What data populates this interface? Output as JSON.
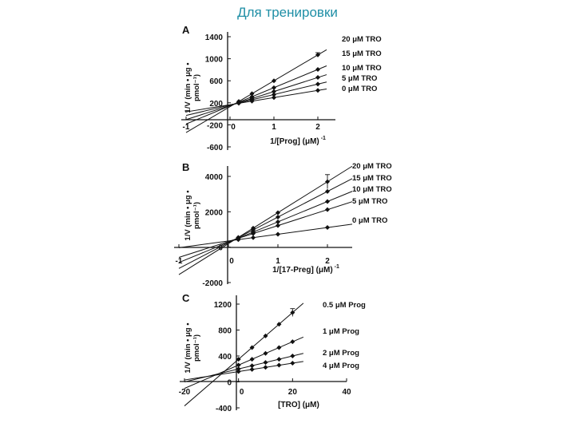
{
  "slide_title": "Для тренировки",
  "chart_data": [
    {
      "type": "line",
      "panel": "A",
      "plot_kind": "double-reciprocal (Lineweaver-Burk)",
      "xlabel": "1/[Prog] (μM)",
      "xlabel_sup": "-1",
      "ylabel": "1/V (min • μg • pmol⁻¹)",
      "xlim": [
        -1,
        2.4
      ],
      "ylim": [
        -600,
        1400
      ],
      "x_ticks": [
        {
          "v": -1,
          "t": "-1"
        },
        {
          "v": 0,
          "t": "0"
        },
        {
          "v": 1,
          "t": "1"
        },
        {
          "v": 2,
          "t": "2"
        }
      ],
      "y_ticks": [
        {
          "v": 1400,
          "t": "1400"
        },
        {
          "v": 1000,
          "t": "1000"
        },
        {
          "v": 600,
          "t": "600"
        },
        {
          "v": 200,
          "t": "200"
        },
        {
          "v": -200,
          "t": "-200"
        },
        {
          "v": -600,
          "t": "-600"
        }
      ],
      "line_x_range": [
        -1,
        2.2
      ],
      "series": [
        {
          "name": "20 μM TRO",
          "slope": 470,
          "intercept": 130,
          "x": [
            0.2,
            0.5,
            1,
            2
          ],
          "values": [
            224,
            365,
            600,
            1070
          ],
          "error_at_last": 40
        },
        {
          "name": "15 μM TRO",
          "slope": 330,
          "intercept": 145,
          "x": [
            0.2,
            0.5,
            1,
            2
          ],
          "values": [
            211,
            310,
            475,
            805
          ],
          "error_at_last": 0
        },
        {
          "name": "10 μM TRO",
          "slope": 255,
          "intercept": 150,
          "x": [
            0.2,
            0.5,
            1,
            2
          ],
          "values": [
            201,
            278,
            405,
            660
          ],
          "error_at_last": 0
        },
        {
          "name": "5 μM TRO",
          "slope": 190,
          "intercept": 160,
          "x": [
            0.2,
            0.5,
            1,
            2
          ],
          "values": [
            198,
            255,
            350,
            540
          ],
          "error_at_last": 0
        },
        {
          "name": "0 μM TRO",
          "slope": 130,
          "intercept": 165,
          "x": [
            0.2,
            0.5,
            1,
            2
          ],
          "values": [
            191,
            230,
            295,
            425
          ],
          "error_at_last": 0
        }
      ]
    },
    {
      "type": "line",
      "panel": "B",
      "plot_kind": "double-reciprocal (Lineweaver-Burk)",
      "xlabel": "1/[17-Preg] (μM)",
      "xlabel_sup": "-1",
      "ylabel": "1/V (min • μg • pmol⁻¹)",
      "xlim": [
        -1,
        2.5
      ],
      "ylim": [
        -2000,
        4500
      ],
      "x_ticks": [
        {
          "v": -1,
          "t": "-1"
        },
        {
          "v": 0,
          "t": "0"
        },
        {
          "v": 1,
          "t": "1"
        },
        {
          "v": 2,
          "t": "2"
        }
      ],
      "y_ticks": [
        {
          "v": 4000,
          "t": "4000"
        },
        {
          "v": 2000,
          "t": "2000"
        },
        {
          "v": 0,
          "t": "0"
        },
        {
          "v": -2000,
          "t": "-2000"
        }
      ],
      "line_x_range": [
        -1,
        2.5
      ],
      "series": [
        {
          "name": "20 μM TRO",
          "slope": 1750,
          "intercept": 200,
          "x": [
            0.2,
            0.5,
            1,
            2
          ],
          "values": [
            550,
            1075,
            1950,
            3700
          ],
          "error_at_last": 400
        },
        {
          "name": "15 μM TRO",
          "slope": 1450,
          "intercept": 250,
          "x": [
            0.2,
            0.5,
            1,
            2
          ],
          "values": [
            540,
            975,
            1700,
            3150
          ],
          "error_at_last": 0
        },
        {
          "name": "10 μM TRO",
          "slope": 1150,
          "intercept": 280,
          "x": [
            0.2,
            0.5,
            1,
            2
          ],
          "values": [
            510,
            855,
            1430,
            2580
          ],
          "error_at_last": 0
        },
        {
          "name": "5 μM TRO",
          "slope": 900,
          "intercept": 320,
          "x": [
            0.2,
            0.5,
            1,
            2
          ],
          "values": [
            500,
            770,
            1220,
            2120
          ],
          "error_at_last": 0
        },
        {
          "name": "0 μM TRO",
          "slope": 380,
          "intercept": 350,
          "x": [
            0.2,
            0.5,
            1,
            2
          ],
          "values": [
            426,
            540,
            730,
            1110
          ],
          "error_at_last": 0
        }
      ]
    },
    {
      "type": "line",
      "panel": "C",
      "plot_kind": "Dixon plot",
      "xlabel": "[TRO] (μM)",
      "xlabel_sup": "",
      "ylabel": "1/V (min • μg • pmol⁻¹)",
      "xlim": [
        -20,
        40
      ],
      "ylim": [
        -400,
        1250
      ],
      "x_ticks": [
        {
          "v": -20,
          "t": "-20"
        },
        {
          "v": 0,
          "t": "0"
        },
        {
          "v": 20,
          "t": "20"
        },
        {
          "v": 40,
          "t": "40"
        }
      ],
      "y_ticks": [
        {
          "v": 1200,
          "t": "1200"
        },
        {
          "v": 800,
          "t": "800"
        },
        {
          "v": 400,
          "t": "400"
        },
        {
          "v": 0,
          "t": "0"
        },
        {
          "v": -400,
          "t": "-400"
        }
      ],
      "line_x_range": [
        -20,
        24
      ],
      "series": [
        {
          "name": "0.5 μM Prog",
          "slope": 36,
          "intercept": 350,
          "x": [
            0,
            5,
            10,
            15,
            20
          ],
          "values": [
            350,
            530,
            710,
            890,
            1070
          ],
          "error_at_last": 60
        },
        {
          "name": "1 μM Prog",
          "slope": 18,
          "intercept": 260,
          "x": [
            0,
            5,
            10,
            15,
            20
          ],
          "values": [
            260,
            350,
            440,
            530,
            620
          ],
          "error_at_last": 0
        },
        {
          "name": "2 μM Prog",
          "slope": 10,
          "intercept": 200,
          "x": [
            0,
            5,
            10,
            15,
            20
          ],
          "values": [
            200,
            250,
            300,
            350,
            400
          ],
          "error_at_last": 0
        },
        {
          "name": "4 μM Prog",
          "slope": 6.5,
          "intercept": 160,
          "x": [
            0,
            5,
            10,
            15,
            20
          ],
          "values": [
            160,
            193,
            225,
            258,
            290
          ],
          "error_at_last": 0
        }
      ]
    }
  ]
}
